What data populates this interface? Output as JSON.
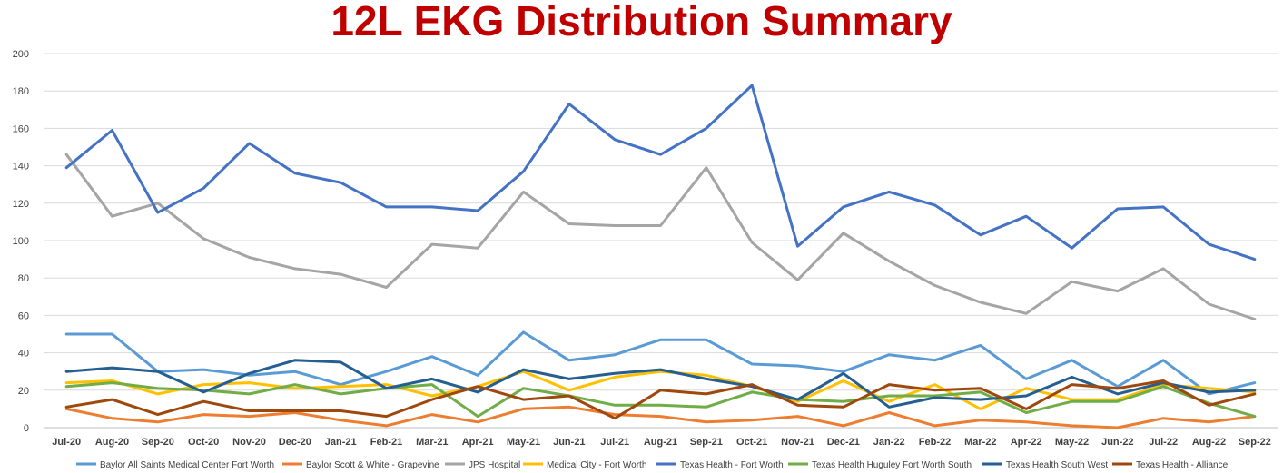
{
  "chart_data": {
    "type": "line",
    "title": "12L EKG Distribution Summary",
    "xlabel": "",
    "ylabel": "",
    "ylim": [
      0,
      200
    ],
    "yticks": [
      0,
      20,
      40,
      60,
      80,
      100,
      120,
      140,
      160,
      180,
      200
    ],
    "grid": true,
    "legend_position": "bottom",
    "categories": [
      "Jul-20",
      "Aug-20",
      "Sep-20",
      "Oct-20",
      "Nov-20",
      "Dec-20",
      "Jan-21",
      "Feb-21",
      "Mar-21",
      "Apr-21",
      "May-21",
      "Jun-21",
      "Jul-21",
      "Aug-21",
      "Sep-21",
      "Oct-21",
      "Nov-21",
      "Dec-21",
      "Jan-22",
      "Feb-22",
      "Mar-22",
      "Apr-22",
      "May-22",
      "Jun-22",
      "Jul-22",
      "Aug-22",
      "Sep-22"
    ],
    "series": [
      {
        "name": "Baylor All Saints Medical Center Fort Worth",
        "color": "#5B9BD5",
        "values": [
          50,
          50,
          30,
          31,
          28,
          30,
          23,
          30,
          38,
          28,
          51,
          36,
          39,
          47,
          47,
          34,
          33,
          30,
          39,
          36,
          44,
          26,
          36,
          22,
          36,
          18,
          24
        ]
      },
      {
        "name": "Baylor Scott & White - Grapevine",
        "color": "#ED7D31",
        "values": [
          10,
          5,
          3,
          7,
          6,
          8,
          4,
          1,
          7,
          3,
          10,
          11,
          7,
          6,
          3,
          4,
          6,
          1,
          8,
          1,
          4,
          3,
          1,
          0,
          5,
          3,
          6
        ]
      },
      {
        "name": "JPS Hospital",
        "color": "#A5A5A5",
        "values": [
          146,
          113,
          120,
          101,
          91,
          85,
          82,
          75,
          98,
          96,
          126,
          109,
          108,
          108,
          139,
          99,
          79,
          104,
          89,
          76,
          67,
          61,
          78,
          73,
          85,
          66,
          58
        ]
      },
      {
        "name": "Medical City - Fort Worth",
        "color": "#FFC000",
        "values": [
          24,
          25,
          18,
          23,
          24,
          21,
          22,
          23,
          17,
          22,
          30,
          20,
          27,
          30,
          28,
          22,
          14,
          25,
          14,
          23,
          10,
          21,
          15,
          15,
          23,
          21,
          19
        ]
      },
      {
        "name": "Texas Health - Fort Worth",
        "color": "#4472C4",
        "values": [
          139,
          159,
          115,
          128,
          152,
          136,
          131,
          118,
          118,
          116,
          137,
          173,
          154,
          146,
          160,
          183,
          97,
          118,
          126,
          119,
          103,
          113,
          96,
          117,
          118,
          98,
          90
        ]
      },
      {
        "name": "Texas Health Huguley Fort Worth South",
        "color": "#70AD47",
        "values": [
          22,
          24,
          21,
          20,
          18,
          23,
          18,
          21,
          23,
          6,
          21,
          17,
          12,
          12,
          11,
          19,
          15,
          14,
          17,
          17,
          19,
          8,
          14,
          14,
          22,
          13,
          6
        ]
      },
      {
        "name": "Texas Health South West",
        "color": "#255E91",
        "values": [
          30,
          32,
          30,
          19,
          29,
          36,
          35,
          21,
          26,
          19,
          31,
          26,
          29,
          31,
          26,
          22,
          15,
          29,
          11,
          16,
          15,
          17,
          27,
          18,
          24,
          19,
          20
        ]
      },
      {
        "name": "Texas Health - Alliance",
        "color": "#9E480E",
        "values": [
          11,
          15,
          7,
          14,
          9,
          9,
          9,
          6,
          15,
          22,
          15,
          17,
          5,
          20,
          18,
          23,
          12,
          11,
          23,
          20,
          21,
          10,
          23,
          21,
          25,
          12,
          18
        ]
      }
    ]
  }
}
